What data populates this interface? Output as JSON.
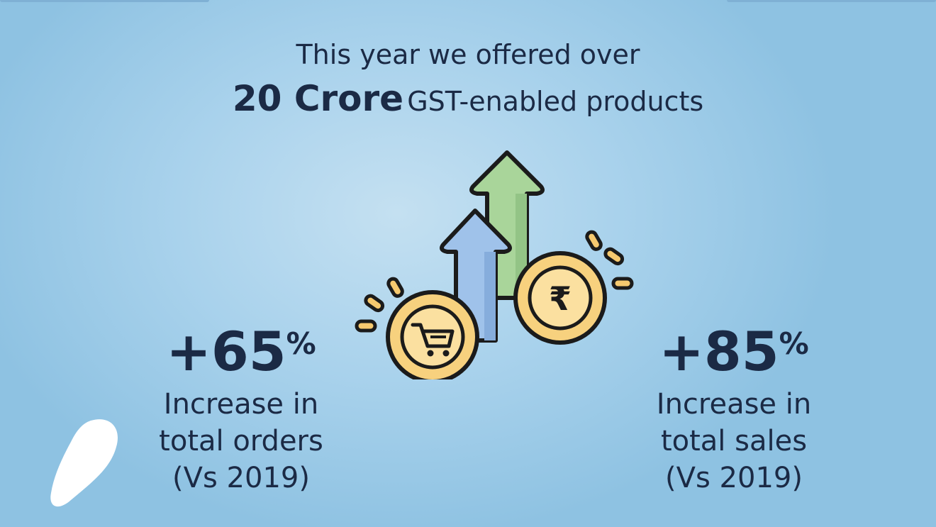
{
  "headline": {
    "line1": "This year we offered over",
    "line2_big": "20 Crore",
    "line2_rest": "GST-enabled products"
  },
  "stats": {
    "left": {
      "value": "+65",
      "suffix": "%",
      "desc_line1": "Increase in",
      "desc_line2": "total orders",
      "desc_line3": "(Vs 2019)"
    },
    "right": {
      "value": "+85",
      "suffix": "%",
      "desc_line1": "Increase in",
      "desc_line2": "total sales",
      "desc_line3": "(Vs 2019)"
    }
  },
  "graphic": {
    "rupee_symbol": "₹",
    "icons": [
      "up-arrow-green-icon",
      "up-arrow-blue-icon",
      "shopping-cart-coin-icon",
      "rupee-coin-icon",
      "sparkle-icon",
      "blob-shape"
    ]
  },
  "colors": {
    "text": "#1b2a45",
    "green_arrow": "#a9d59a",
    "blue_arrow": "#9fc2ea",
    "coin": "#f7d17e",
    "coin_ring": "#e7b656",
    "spark": "#f6c96f"
  }
}
